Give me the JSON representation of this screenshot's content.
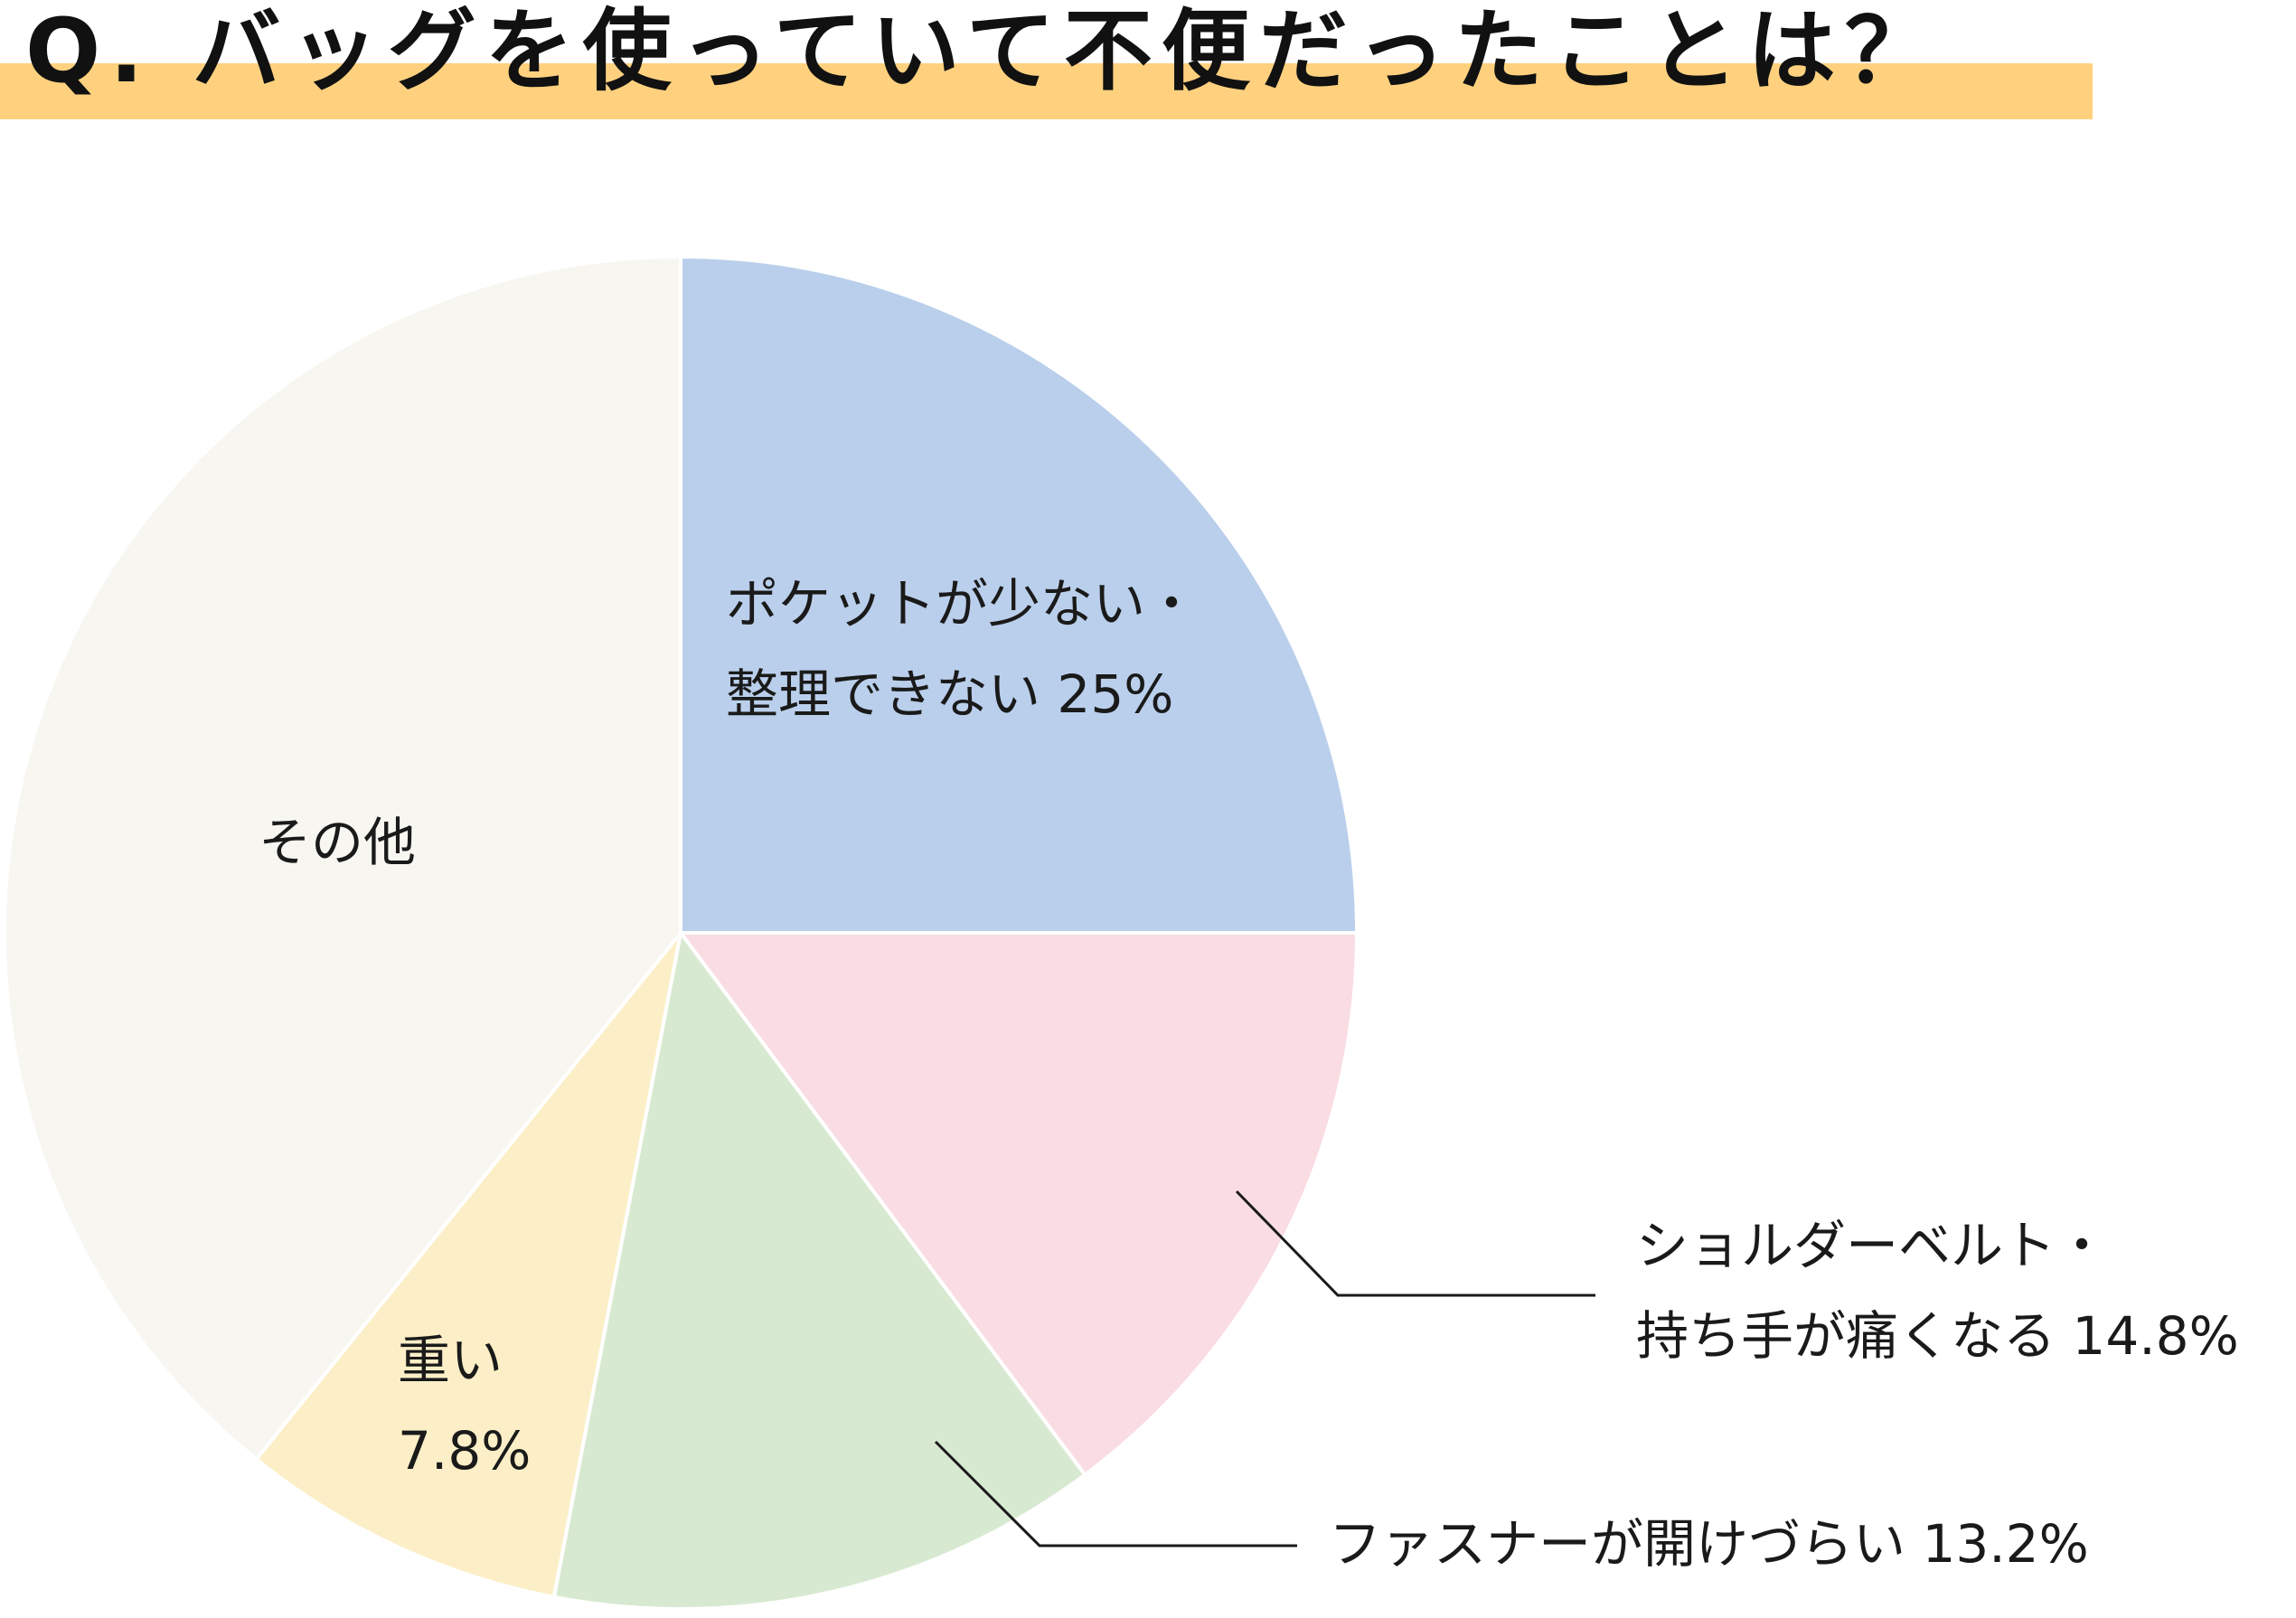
{
  "title": "Q. バッグを使っていて不便だったことは？",
  "colors": {
    "accent_bar": "#ffd17f"
  },
  "chart_data": {
    "type": "pie",
    "title": "Q. バッグを使っていて不便だったことは？",
    "start_angle_deg": 0,
    "direction": "clockwise",
    "slices": [
      {
        "label_lines": [
          "ポケットが少ない・",
          "整理できない 25%"
        ],
        "value": 25.0,
        "color": "#bacfeb"
      },
      {
        "label_lines": [
          "ショルダーベルト・",
          "持ち手が痛くなる 14.8%"
        ],
        "value": 14.8,
        "color": "#fadce3"
      },
      {
        "label_lines": [
          "ファスナーが開けづらい 13.2%"
        ],
        "value": 13.2,
        "color": "#d8e9d1"
      },
      {
        "label_lines": [
          "重い",
          "7.8%"
        ],
        "value": 7.8,
        "color": "#fcefc7"
      },
      {
        "label_lines": [
          "その他"
        ],
        "value": 39.2,
        "color": "#f7f6f1"
      }
    ]
  }
}
